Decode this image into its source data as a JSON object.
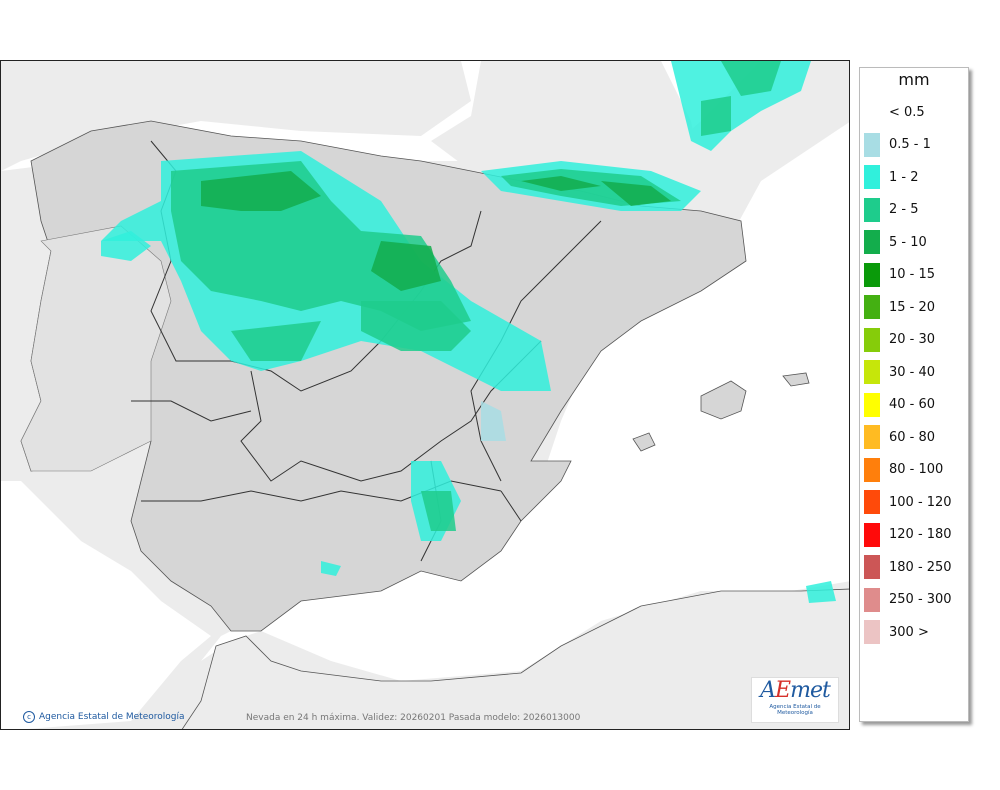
{
  "legend": {
    "unit": "mm",
    "items": [
      {
        "label": "< 0.5",
        "color": "#ffffff"
      },
      {
        "label": "0.5 - 1",
        "color": "#a8dde4"
      },
      {
        "label": "1 - 2",
        "color": "#30f0dc"
      },
      {
        "label": "2 - 5",
        "color": "#1ecc8c"
      },
      {
        "label": "5 - 10",
        "color": "#13ad4c"
      },
      {
        "label": "10 - 15",
        "color": "#0a9a0a"
      },
      {
        "label": "15 - 20",
        "color": "#44b012"
      },
      {
        "label": "20 - 30",
        "color": "#86cc0a"
      },
      {
        "label": "30 - 40",
        "color": "#c6e60a"
      },
      {
        "label": "40 - 60",
        "color": "#ffff00"
      },
      {
        "label": "60 - 80",
        "color": "#ffbb22"
      },
      {
        "label": "80 - 100",
        "color": "#ff7f0c"
      },
      {
        "label": "100 - 120",
        "color": "#ff4a0a"
      },
      {
        "label": "120 - 180",
        "color": "#ff0a0a"
      },
      {
        "label": "180 - 250",
        "color": "#cc5656"
      },
      {
        "label": "250 - 300",
        "color": "#df8c8c"
      },
      {
        "label": "300 >",
        "color": "#ecc4c4"
      }
    ]
  },
  "footer": {
    "copyright": "Agencia Estatal de Meteorología",
    "caption": "Nevada en 24 h máxima. Validez: 20260201 Pasada modelo: 2026013000"
  },
  "logo": {
    "text": "Agencia Estatal de Meteorología"
  }
}
